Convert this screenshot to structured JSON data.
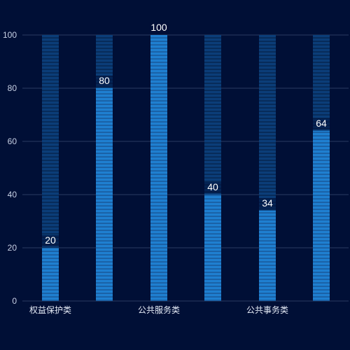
{
  "chart_data": {
    "type": "bar",
    "categories": [
      "权益保护类",
      "",
      "公共服务类",
      "",
      "公共事务类",
      ""
    ],
    "values": [
      20,
      80,
      100,
      40,
      34,
      64
    ],
    "data_labels": [
      "20",
      "80",
      "100",
      "40",
      "34",
      "64"
    ],
    "title": "",
    "xlabel": "",
    "ylabel": "",
    "ylim": [
      0,
      100
    ],
    "yticks": [
      "0",
      "20",
      "40",
      "60",
      "80",
      "100"
    ],
    "grid": true,
    "legend": "none"
  },
  "colors": {
    "background": "#000f36",
    "grid": "#2a3b62",
    "bar_fill": "#1f7fd0",
    "bar_fill_stripe": "#1a5fa3",
    "bar_track": "#0b3d78",
    "bar_track_stripe": "#072a57",
    "tick_text": "#c8d2e6",
    "label_text": "#ffffff"
  }
}
